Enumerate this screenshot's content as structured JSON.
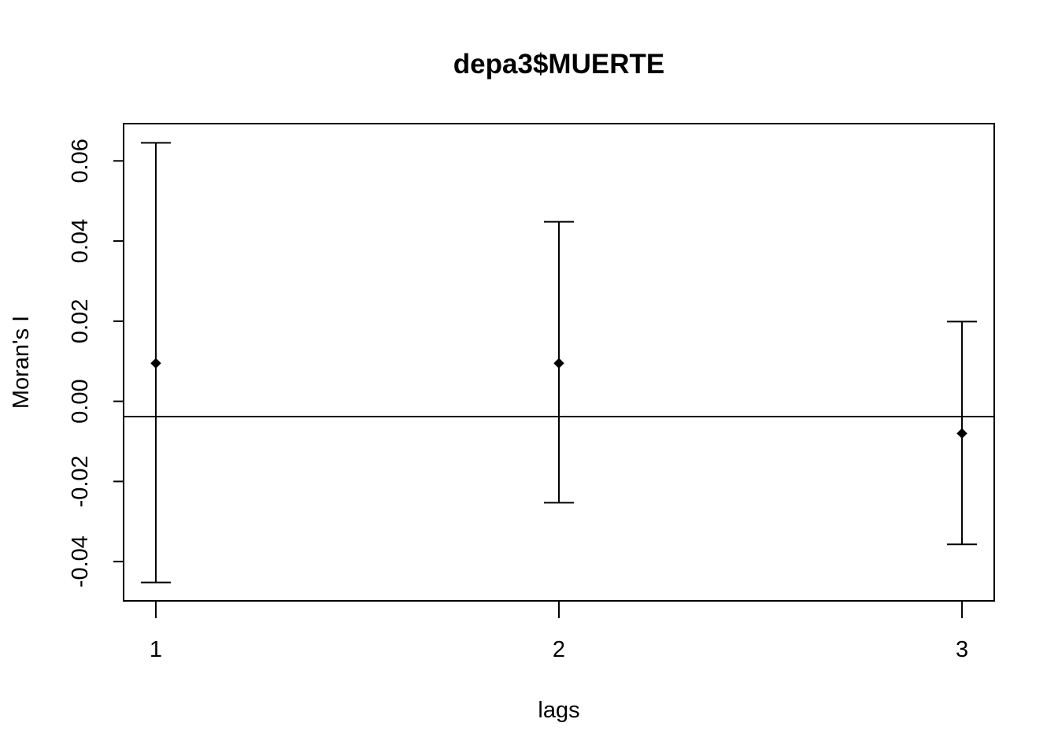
{
  "chart_data": {
    "type": "scatter",
    "title": "depa3$MUERTE",
    "xlabel": "lags",
    "ylabel": "Moran's  I",
    "x_ticks": [
      "1",
      "2",
      "3"
    ],
    "y_ticks": [
      "-0.04",
      "-0.02",
      "0.00",
      "0.02",
      "0.04",
      "0.06"
    ],
    "x": [
      1,
      2,
      3
    ],
    "values": [
      0.0095,
      0.0095,
      -0.008
    ],
    "error_bars": {
      "lower": [
        -0.0452,
        -0.0253,
        -0.0357
      ],
      "upper": [
        0.0645,
        0.0448,
        0.0199
      ]
    },
    "reference_line": -0.0038,
    "xlim": [
      0.92,
      3.08
    ],
    "ylim": [
      -0.0498,
      0.0693
    ],
    "grid": false,
    "legend": false
  }
}
